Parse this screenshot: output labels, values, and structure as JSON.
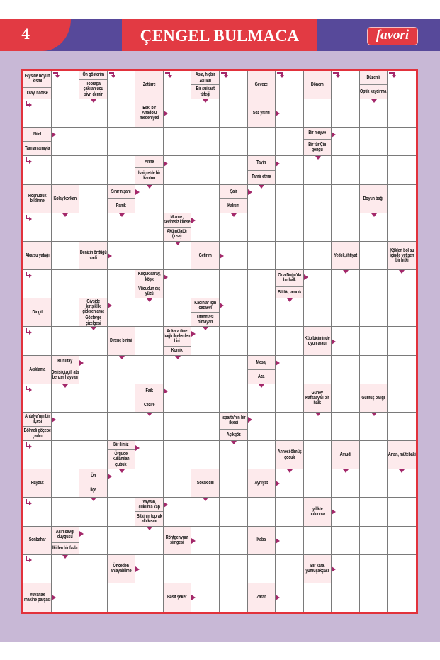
{
  "header": {
    "page_number": "4",
    "title": "ÇENGEL BULMACA",
    "logo": "favori"
  },
  "colors": {
    "red": "#e23a43",
    "purple": "#57499a",
    "background": "#c8b8d6",
    "clue_fill": "#fdeaec",
    "arrow": "#a3286a"
  },
  "puzzle": {
    "rows": [
      [
        [
          {
            "t": "Giyside boyun kısmı",
            "a": "right-down"
          },
          {
            "t": "Olay, hadise",
            "a": "down-right"
          }
        ],
        null,
        [
          {
            "t": "Ön gösterim",
            "a": "right-down"
          },
          {
            "t": "Toprağa çakılan ucu sivri demir",
            "a": "down"
          }
        ],
        null,
        [
          {
            "t": "Zatürre",
            "a": "right-down"
          }
        ],
        null,
        [
          {
            "t": "Asla, hiçbir zaman",
            "a": "right-down"
          },
          {
            "t": "Bir suikast tüfeği",
            "a": "down"
          }
        ],
        null,
        [
          {
            "t": "Geveze",
            "a": "right-down"
          }
        ],
        null,
        [
          {
            "t": "Dönem",
            "a": "right-down"
          }
        ],
        null,
        [
          {
            "t": "Düzenli",
            "a": "right-down"
          },
          {
            "t": "Optik kaydırma",
            "a": "down"
          }
        ],
        null
      ],
      [
        null,
        null,
        null,
        null,
        [
          {
            "t": "Eski bir Anadolu medeniyeti",
            "a": "right"
          }
        ],
        null,
        null,
        null,
        [
          {
            "t": "Söz yitimi",
            "a": "right"
          }
        ],
        null,
        null,
        null,
        null,
        null
      ],
      [
        [
          {
            "t": "Nitel",
            "a": "right"
          },
          {
            "t": "Tam anlamıyla",
            "a": "down-right"
          }
        ],
        null,
        null,
        null,
        null,
        null,
        null,
        null,
        null,
        null,
        [
          {
            "t": "Bir meyve",
            "a": "right"
          },
          {
            "t": "Bir tür Çin gongu",
            "a": "down"
          }
        ],
        null,
        null,
        null
      ],
      [
        null,
        null,
        null,
        null,
        [
          {
            "t": "Anne",
            "a": "right"
          },
          {
            "t": "İsviçre'de bir kanton",
            "a": "down"
          }
        ],
        null,
        null,
        null,
        [
          {
            "t": "Tayin",
            "a": "right"
          },
          {
            "t": "Tamir etme",
            "a": "down"
          }
        ],
        null,
        null,
        null,
        null,
        null
      ],
      [
        [
          {
            "t": "Hoşnutluk bildirme",
            "a": "down-right"
          }
        ],
        [
          {
            "t": "Kolay korkan",
            "a": "down"
          }
        ],
        null,
        [
          {
            "t": "Sınır nişanı",
            "a": "right"
          },
          {
            "t": "Panik",
            "a": "down"
          }
        ],
        null,
        null,
        null,
        [
          {
            "t": "Şair",
            "a": "right"
          },
          {
            "t": "Kalıtım",
            "a": "down"
          }
        ],
        null,
        null,
        null,
        null,
        [
          {
            "t": "Boyun bağı",
            "a": "down"
          }
        ],
        null
      ],
      [
        null,
        null,
        null,
        null,
        null,
        [
          {
            "t": "Mızmız, sevimsiz kimse",
            "a": "right"
          },
          {
            "t": "Akümülatör (kısa)",
            "a": "down"
          }
        ],
        null,
        null,
        null,
        null,
        null,
        null,
        null,
        null
      ],
      [
        [
          {
            "t": "Akarsu yatağı",
            "a": "down-right"
          }
        ],
        null,
        [
          {
            "t": "Denizin örttüğü vadi",
            "a": "right"
          }
        ],
        null,
        null,
        null,
        [
          {
            "t": "Getirim",
            "a": "right"
          }
        ],
        null,
        null,
        null,
        null,
        [
          {
            "t": "Yedek, ihtiyat",
            "a": "down"
          }
        ],
        null,
        [
          {
            "t": "Kökleri bol su içinde yetişen bir bitki",
            "a": "down"
          }
        ]
      ],
      [
        null,
        null,
        null,
        null,
        [
          {
            "t": "Küçük saray, köşk",
            "a": "right"
          },
          {
            "t": "Vücudun dış yüzü",
            "a": "down"
          }
        ],
        null,
        null,
        null,
        null,
        [
          {
            "t": "Orta Doğu'da bir halk",
            "a": "right"
          },
          {
            "t": "Bildik, tanıdık",
            "a": "down"
          }
        ],
        null,
        null,
        null,
        null
      ],
      [
        [
          {
            "t": "Dingil",
            "a": "down-right"
          }
        ],
        null,
        [
          {
            "t": "Giyside kırışıklık gideren araç",
            "a": "right"
          },
          {
            "t": "Gösterge çizelgesi",
            "a": "down"
          }
        ],
        null,
        null,
        null,
        [
          {
            "t": "Kadınlar için cezaevi",
            "a": "right"
          },
          {
            "t": "Utanması olmayan",
            "a": "down"
          }
        ],
        null,
        null,
        null,
        null,
        null,
        null,
        null
      ],
      [
        null,
        null,
        null,
        [
          {
            "t": "Direnç birimi",
            "a": "down"
          }
        ],
        null,
        [
          {
            "t": "Ankara iline bağlı ilçelerden biri",
            "a": "right"
          },
          {
            "t": "Komik",
            "a": "down"
          }
        ],
        null,
        null,
        null,
        null,
        [
          {
            "t": "Küp biçiminde oyun aracı",
            "a": "right"
          }
        ],
        null,
        null,
        null
      ],
      [
        [
          {
            "t": "Açıklama",
            "a": "down-right"
          }
        ],
        [
          {
            "t": "Kurultay",
            "a": "right"
          },
          {
            "t": "Derisi çizgili ata benzer hayvan",
            "a": "down"
          }
        ],
        null,
        null,
        null,
        null,
        null,
        null,
        [
          {
            "t": "Mesaj",
            "a": "right"
          },
          {
            "t": "Aza",
            "a": "down"
          }
        ],
        null,
        null,
        null,
        null,
        null
      ],
      [
        null,
        null,
        null,
        null,
        [
          {
            "t": "Faik",
            "a": "right"
          },
          {
            "t": "Cezire",
            "a": "down"
          }
        ],
        null,
        null,
        null,
        null,
        null,
        [
          {
            "t": "Güney Kafkasyalı bir halk",
            "a": "down"
          }
        ],
        null,
        [
          {
            "t": "Gümüş balığı",
            "a": "down"
          }
        ],
        null
      ],
      [
        [
          {
            "t": "Antalya'nın bir ilçesi",
            "a": "right"
          },
          {
            "t": "Bölmeli göçebe çadırı",
            "a": "down-right"
          }
        ],
        null,
        null,
        null,
        null,
        null,
        null,
        [
          {
            "t": "Isparta'nın bir ilçesi",
            "a": "right"
          },
          {
            "t": "Açıkgöz",
            "a": "down"
          }
        ],
        null,
        null,
        null,
        null,
        null,
        null
      ],
      [
        null,
        null,
        null,
        [
          {
            "t": "Bir ilimiz",
            "a": "right"
          },
          {
            "t": "Örgüde kullanılan çubuk",
            "a": "down"
          }
        ],
        null,
        null,
        null,
        null,
        null,
        [
          {
            "t": "Annesi ölmüş çocuk",
            "a": "down"
          }
        ],
        null,
        [
          {
            "t": "Amudi",
            "a": "down"
          }
        ],
        null,
        [
          {
            "t": "Artan, mütebaki",
            "a": "down"
          }
        ]
      ],
      [
        [
          {
            "t": "Haydut",
            "a": "down-right"
          }
        ],
        null,
        [
          {
            "t": "Ün",
            "a": "right"
          },
          {
            "t": "İlçe",
            "a": "down"
          }
        ],
        null,
        null,
        null,
        [
          {
            "t": "Sokak dili",
            "a": "down"
          }
        ],
        null,
        [
          {
            "t": "Ayniyat",
            "a": "right"
          }
        ],
        null,
        null,
        null,
        null,
        null
      ],
      [
        null,
        null,
        null,
        null,
        [
          {
            "t": "Yayvan, çukurca kap",
            "a": "right"
          },
          {
            "t": "Bitkinin toprak altı kısmı",
            "a": "down"
          }
        ],
        null,
        null,
        null,
        null,
        null,
        [
          {
            "t": "İyilikte bulunma",
            "a": "right"
          }
        ],
        null,
        null,
        null
      ],
      [
        [
          {
            "t": "Sonbahar",
            "a": "down-right"
          }
        ],
        [
          {
            "t": "Aşırı sevgi duygusu",
            "a": "right"
          },
          {
            "t": "İkiden bir fazla",
            "a": "down"
          }
        ],
        null,
        null,
        null,
        [
          {
            "t": "Röntgenyum simgesi",
            "a": "right"
          }
        ],
        null,
        null,
        [
          {
            "t": "Kaba",
            "a": "right"
          }
        ],
        null,
        null,
        null,
        null,
        null
      ],
      [
        null,
        null,
        null,
        [
          {
            "t": "Önceden anlayabilme",
            "a": "right"
          }
        ],
        null,
        null,
        null,
        null,
        null,
        null,
        [
          {
            "t": "Bir kara yumuşakçası",
            "a": "right"
          }
        ],
        null,
        null,
        null
      ],
      [
        [
          {
            "t": "Yuvarlak makine parçası",
            "a": "right"
          }
        ],
        null,
        null,
        null,
        null,
        [
          {
            "t": "Basit şeker",
            "a": "right"
          }
        ],
        null,
        null,
        [
          {
            "t": "Zarar",
            "a": "right"
          }
        ],
        null,
        null,
        null,
        null,
        null
      ]
    ]
  }
}
